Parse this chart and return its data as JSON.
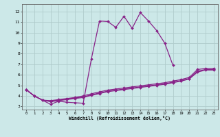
{
  "bg_color": "#cce8e8",
  "line_color": "#882288",
  "grid_color": "#b0cccc",
  "xlabel": "Windchill (Refroidissement éolien,°C)",
  "xlim": [
    -0.5,
    23.5
  ],
  "ylim": [
    2.7,
    12.7
  ],
  "xticks": [
    0,
    1,
    2,
    3,
    4,
    5,
    6,
    7,
    8,
    9,
    10,
    11,
    12,
    13,
    14,
    15,
    16,
    17,
    18,
    19,
    20,
    21,
    22,
    23
  ],
  "yticks": [
    3,
    4,
    5,
    6,
    7,
    8,
    9,
    10,
    11,
    12
  ],
  "series0_x": [
    0,
    1,
    2,
    3,
    4,
    5,
    6,
    7,
    8,
    9,
    10,
    11,
    12,
    13,
    14,
    15,
    16,
    17,
    18
  ],
  "series0_y": [
    4.6,
    4.0,
    3.6,
    3.2,
    3.5,
    3.4,
    3.35,
    3.3,
    7.5,
    11.1,
    11.05,
    10.5,
    11.55,
    10.4,
    11.9,
    11.1,
    10.2,
    9.0,
    6.9
  ],
  "series1_x": [
    0,
    1,
    2,
    3,
    4,
    5,
    6,
    7,
    8,
    9,
    10,
    11,
    12,
    13,
    14,
    15,
    16,
    17,
    18,
    19,
    20,
    21,
    22,
    23
  ],
  "series1_y": [
    4.6,
    4.0,
    3.6,
    3.55,
    3.65,
    3.75,
    3.85,
    4.0,
    4.2,
    4.38,
    4.55,
    4.65,
    4.75,
    4.85,
    4.95,
    5.05,
    5.15,
    5.25,
    5.4,
    5.55,
    5.75,
    6.5,
    6.6,
    6.6
  ],
  "series2_x": [
    0,
    1,
    2,
    3,
    4,
    5,
    6,
    7,
    8,
    9,
    10,
    11,
    12,
    13,
    14,
    15,
    16,
    17,
    18,
    19,
    20,
    21,
    22,
    23
  ],
  "series2_y": [
    4.6,
    4.0,
    3.6,
    3.5,
    3.6,
    3.7,
    3.8,
    3.9,
    4.1,
    4.28,
    4.45,
    4.55,
    4.65,
    4.75,
    4.85,
    4.95,
    5.05,
    5.15,
    5.3,
    5.45,
    5.65,
    6.35,
    6.5,
    6.5
  ],
  "series3_x": [
    0,
    1,
    2,
    3,
    4,
    5,
    6,
    7,
    8,
    9,
    10,
    11,
    12,
    13,
    14,
    15,
    16,
    17,
    18,
    19,
    20,
    21,
    22,
    23
  ],
  "series3_y": [
    4.6,
    4.0,
    3.6,
    3.45,
    3.55,
    3.65,
    3.75,
    3.85,
    4.05,
    4.22,
    4.4,
    4.5,
    4.6,
    4.7,
    4.8,
    4.9,
    5.0,
    5.1,
    5.25,
    5.4,
    5.6,
    6.25,
    6.45,
    6.45
  ]
}
